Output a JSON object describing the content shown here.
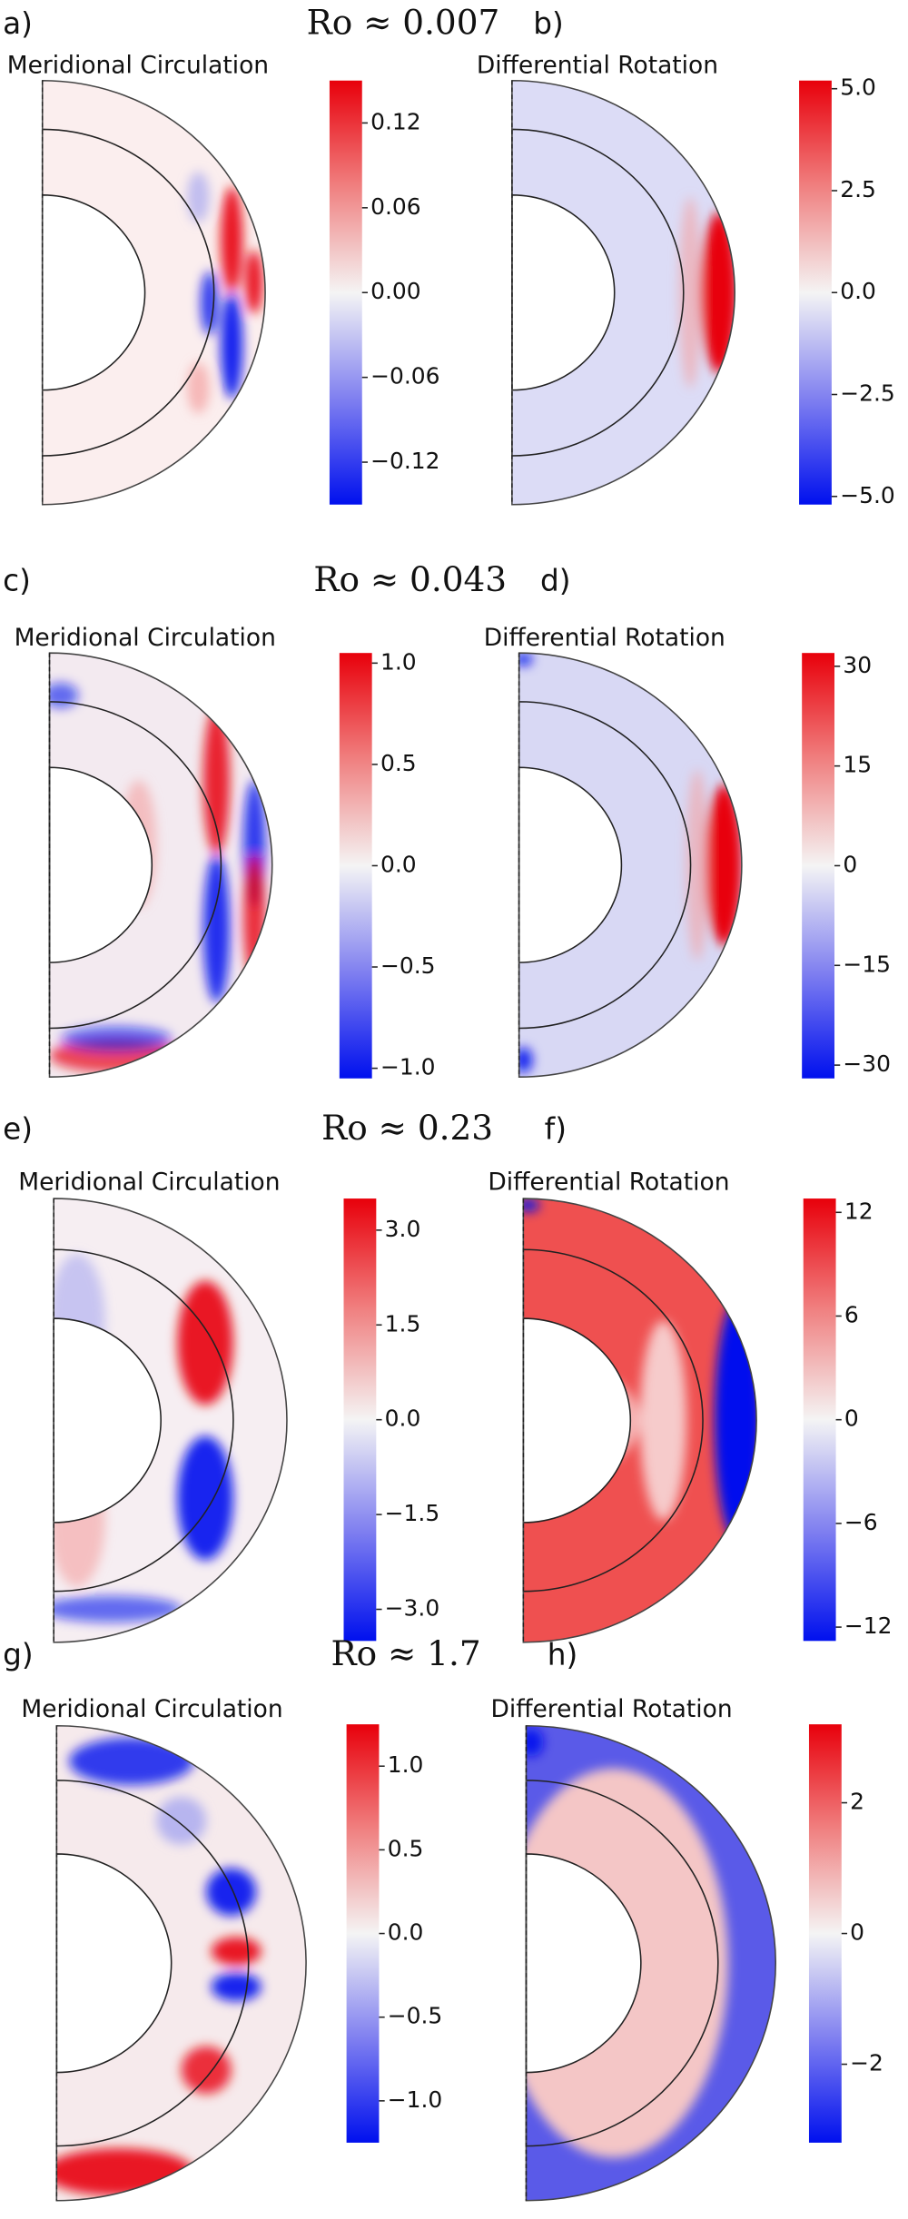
{
  "figure": {
    "rows": [
      {
        "ro": "Ro ≈ 0.007",
        "left": {
          "label": "a)",
          "title": "Meridional Circulation",
          "cbar_lim": [
            -0.15,
            0.15
          ],
          "cbar_ticks": [
            {
              "value": 0.12,
              "label": "0.12"
            },
            {
              "value": 0.06,
              "label": "0.06"
            },
            {
              "value": 0,
              "label": "0.00"
            },
            {
              "value": -0.06,
              "label": "−0.06"
            },
            {
              "value": -0.12,
              "label": "−0.12"
            }
          ]
        },
        "right": {
          "label": "b)",
          "title": "Differential Rotation",
          "cbar_lim": [
            -5.2,
            5.2
          ],
          "cbar_ticks": [
            {
              "value": 5,
              "label": "5.0"
            },
            {
              "value": 2.5,
              "label": "2.5"
            },
            {
              "value": 0,
              "label": "0.0"
            },
            {
              "value": -2.5,
              "label": "−2.5"
            },
            {
              "value": -5,
              "label": "−5.0"
            }
          ]
        }
      },
      {
        "ro": "Ro ≈ 0.043",
        "left": {
          "label": "c)",
          "title": "Meridional Circulation",
          "cbar_lim": [
            -1.05,
            1.05
          ],
          "cbar_ticks": [
            {
              "value": 1,
              "label": "1.0"
            },
            0.5,
            {
              "value": 0,
              "label": "0.0"
            },
            {
              "value": -0.5,
              "label": "−0.5"
            },
            {
              "value": -1,
              "label": "−1.0"
            }
          ]
        },
        "right": {
          "label": "d)",
          "title": "Differential Rotation",
          "cbar_lim": [
            -32,
            32
          ],
          "cbar_ticks": [
            30,
            15,
            0,
            {
              "value": -15,
              "label": "−15"
            },
            {
              "value": -30,
              "label": "−30"
            }
          ]
        }
      },
      {
        "ro": "Ro ≈ 0.23",
        "left": {
          "label": "e)",
          "title": "Meridional Circulation",
          "cbar_lim": [
            -3.5,
            3.5
          ],
          "cbar_ticks": [
            {
              "value": 3,
              "label": "3.0"
            },
            1.5,
            {
              "value": 0,
              "label": "0.0"
            },
            {
              "value": -1.5,
              "label": "−1.5"
            },
            {
              "value": -3,
              "label": "−3.0"
            }
          ]
        },
        "right": {
          "label": "f)",
          "title": "Differential Rotation",
          "cbar_lim": [
            -12.8,
            12.8
          ],
          "cbar_ticks": [
            12,
            6,
            0,
            {
              "value": -6,
              "label": "−6"
            },
            {
              "value": -12,
              "label": "−12"
            }
          ]
        }
      },
      {
        "ro": "Ro ≈ 1.7",
        "left": {
          "label": "g)",
          "title": "Meridional Circulation",
          "cbar_lim": [
            -1.25,
            1.25
          ],
          "cbar_ticks": [
            {
              "value": 1,
              "label": "1.0"
            },
            0.5,
            {
              "value": 0,
              "label": "0.0"
            },
            {
              "value": -0.5,
              "label": "−0.5"
            },
            {
              "value": -1,
              "label": "−1.0"
            }
          ]
        },
        "right": {
          "label": "h)",
          "title": "Differential Rotation",
          "cbar_lim": [
            -3.2,
            3.2
          ],
          "cbar_ticks": [
            2,
            0,
            {
              "value": -2,
              "label": "−2"
            }
          ]
        }
      }
    ]
  }
}
